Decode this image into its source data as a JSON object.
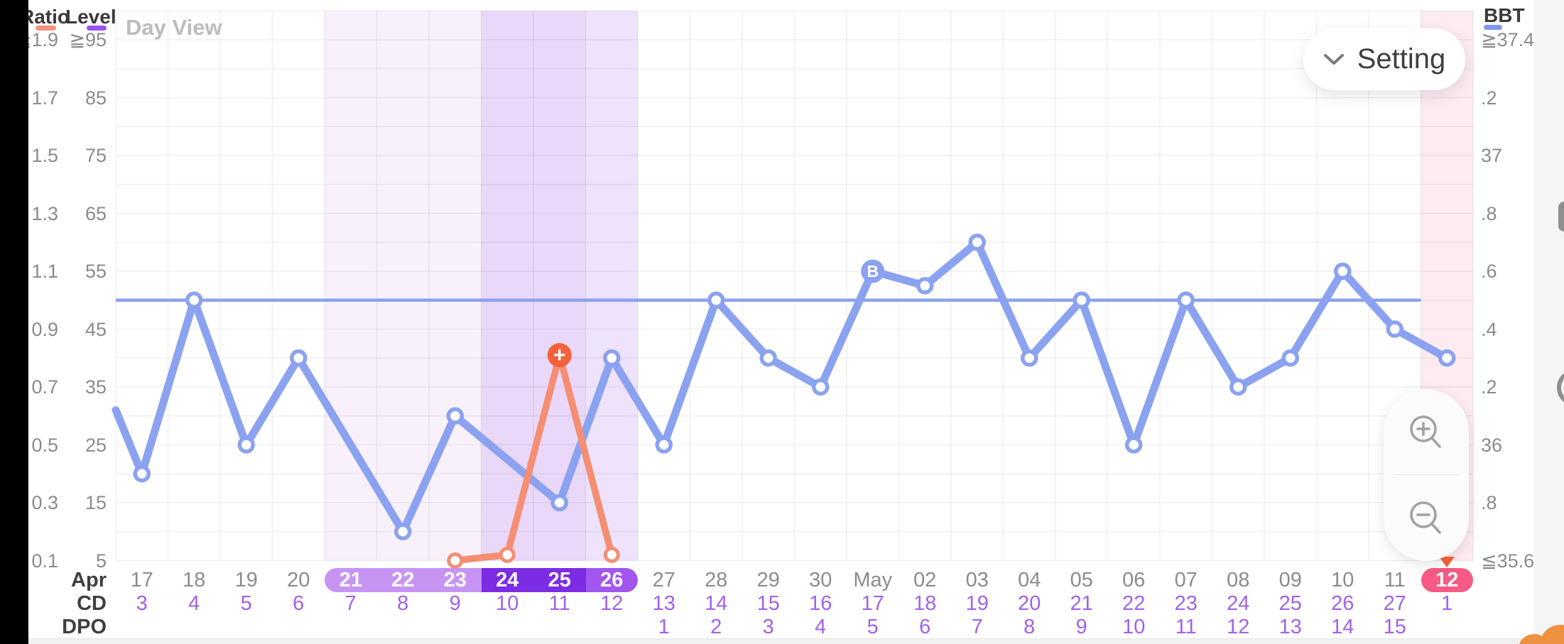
{
  "header": {
    "day_view": "Day View",
    "setting_label": "Setting"
  },
  "legend": {
    "ratio": {
      "label": "Ratio",
      "color": "#f2957d"
    },
    "level": {
      "label": "Level",
      "color": "#9b50ef"
    },
    "bbt": {
      "label": "BBT",
      "color": "#7e97f2"
    }
  },
  "axes": {
    "left_ratio": [
      "≧1.9",
      "1.7",
      "1.5",
      "1.3",
      "1.1",
      "0.9",
      "0.7",
      "0.5",
      "0.3",
      "0.1"
    ],
    "left_level": [
      "≧95",
      "85",
      "75",
      "65",
      "55",
      "45",
      "35",
      "25",
      "15",
      "5"
    ],
    "right_bbt": [
      "≧37.4",
      ".2",
      "37",
      ".8",
      ".6",
      ".4",
      ".2",
      "36",
      ".8",
      "≦35.6"
    ]
  },
  "chart_data": {
    "type": "line",
    "title": "",
    "x_dates": [
      "17",
      "18",
      "19",
      "20",
      "21",
      "22",
      "23",
      "24",
      "25",
      "26",
      "27",
      "28",
      "29",
      "30",
      "May",
      "02",
      "03",
      "04",
      "05",
      "06",
      "07",
      "08",
      "09",
      "10",
      "11",
      "12"
    ],
    "selected_date_indices": [
      4,
      5,
      6,
      7,
      8,
      9,
      25
    ],
    "month_header": "Apr",
    "cd_header": "CD",
    "dpo_header": "DPO",
    "cd": [
      "3",
      "4",
      "5",
      "6",
      "7",
      "8",
      "9",
      "10",
      "11",
      "12",
      "13",
      "14",
      "15",
      "16",
      "17",
      "18",
      "19",
      "20",
      "21",
      "22",
      "23",
      "24",
      "25",
      "26",
      "27",
      "1"
    ],
    "dpo": [
      "",
      "",
      "",
      "",
      "",
      "",
      "",
      "",
      "",
      "",
      "1",
      "2",
      "3",
      "4",
      "5",
      "6",
      "7",
      "8",
      "9",
      "10",
      "11",
      "12",
      "13",
      "14",
      "15",
      ""
    ],
    "left_axis_ratio_range": [
      0.1,
      1.9
    ],
    "left_axis_level_range": [
      5,
      95
    ],
    "right_axis_bbt_range": [
      35.6,
      37.4
    ],
    "grid": "on",
    "coverline": {
      "bbt": 36.5,
      "level": 50,
      "color": "#8ba2f0"
    },
    "lead_in_bbt": 36.12,
    "series": [
      {
        "name": "BBT",
        "color": "#8ba2f0",
        "badge_color": "#8ba2f0",
        "points": [
          {
            "date": "Apr 17",
            "i": 0,
            "bbt": 35.9
          },
          {
            "date": "Apr 18",
            "i": 1,
            "bbt": 36.5
          },
          {
            "date": "Apr 19",
            "i": 2,
            "bbt": 36.0
          },
          {
            "date": "Apr 20",
            "i": 3,
            "bbt": 36.3
          },
          {
            "date": "Apr 22",
            "i": 5,
            "bbt": 35.7
          },
          {
            "date": "Apr 23",
            "i": 6,
            "bbt": 36.1
          },
          {
            "date": "Apr 25",
            "i": 8,
            "bbt": 35.8
          },
          {
            "date": "Apr 26",
            "i": 9,
            "bbt": 36.3
          },
          {
            "date": "Apr 27",
            "i": 10,
            "bbt": 36.0
          },
          {
            "date": "Apr 28",
            "i": 11,
            "bbt": 36.5
          },
          {
            "date": "Apr 29",
            "i": 12,
            "bbt": 36.3
          },
          {
            "date": "Apr 30",
            "i": 13,
            "bbt": 36.2
          },
          {
            "date": "May 01",
            "i": 14,
            "bbt": 36.6,
            "badge": "B"
          },
          {
            "date": "May 02",
            "i": 15,
            "bbt": 36.55
          },
          {
            "date": "May 03",
            "i": 16,
            "bbt": 36.7
          },
          {
            "date": "May 04",
            "i": 17,
            "bbt": 36.3
          },
          {
            "date": "May 05",
            "i": 18,
            "bbt": 36.5
          },
          {
            "date": "May 06",
            "i": 19,
            "bbt": 36.0
          },
          {
            "date": "May 07",
            "i": 20,
            "bbt": 36.5
          },
          {
            "date": "May 08",
            "i": 21,
            "bbt": 36.2
          },
          {
            "date": "May 09",
            "i": 22,
            "bbt": 36.3
          },
          {
            "date": "May 10",
            "i": 23,
            "bbt": 36.6
          },
          {
            "date": "May 11",
            "i": 24,
            "bbt": 36.4
          },
          {
            "date": "May 12",
            "i": 25,
            "bbt": 36.3
          }
        ]
      },
      {
        "name": "Ratio",
        "color": "#f58e72",
        "badge_color": "#f2633c",
        "points": [
          {
            "date": "Apr 23",
            "i": 6,
            "ratio": 0.1
          },
          {
            "date": "Apr 24",
            "i": 7,
            "ratio": 0.12
          },
          {
            "date": "Apr 25",
            "i": 8,
            "ratio": 0.81,
            "badge": "+"
          },
          {
            "date": "Apr 26",
            "i": 9,
            "ratio": 0.12
          }
        ]
      }
    ],
    "bands": [
      {
        "name": "fertile-window-light",
        "start_col": 4,
        "end_col": 6,
        "color": "#f8f1fc"
      },
      {
        "name": "fertile-window-peak",
        "start_col": 7,
        "end_col": 8,
        "color": "#e9d8f8"
      },
      {
        "name": "fertile-window-end",
        "start_col": 9,
        "end_col": 9,
        "color": "#eee3fb"
      },
      {
        "name": "period-day",
        "start_col": 25,
        "end_col": 25,
        "color": "#fcebf1"
      }
    ],
    "pills": [
      {
        "name": "fertile-pill-light",
        "start_col": 4,
        "end_col": 6,
        "color": "#c794f3",
        "round": "left"
      },
      {
        "name": "fertile-pill-dark",
        "start_col": 7,
        "end_col": 8,
        "color": "#7c2ce2",
        "round": "none"
      },
      {
        "name": "fertile-pill-end",
        "start_col": 9,
        "end_col": 9,
        "color": "#a256ee",
        "round": "right"
      },
      {
        "name": "period-pill",
        "start_col": 25,
        "end_col": 25,
        "color": "#f75a84",
        "round": "both"
      }
    ],
    "today_marker": {
      "date": "12",
      "shape": "triangle-down",
      "color": "#f4623a"
    }
  },
  "icons": {
    "setting_chevron": "chevron-down",
    "zoom_in": "magnifier-plus",
    "zoom_out": "magnifier-minus"
  }
}
